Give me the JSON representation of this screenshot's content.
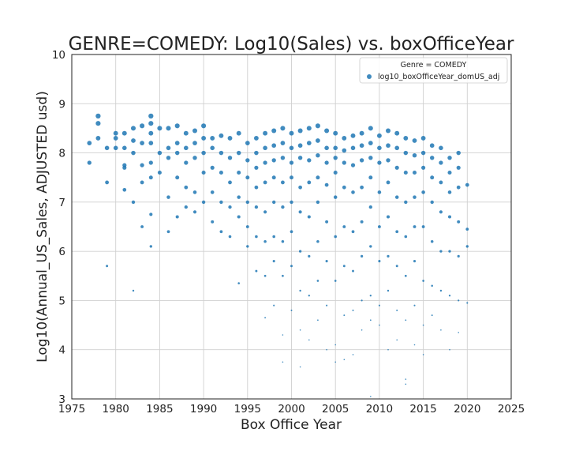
{
  "chart_data": {
    "type": "scatter",
    "title": "GENRE=COMEDY: Log10(Sales) vs. boxOfficeYear",
    "xlabel": "Box Office Year",
    "ylabel": "Log10(Annual_US_Sales, ADJUSTED usd)",
    "xlim": [
      1975,
      2025
    ],
    "ylim": [
      3,
      10
    ],
    "xticks": [
      1975,
      1980,
      1985,
      1990,
      1995,
      2000,
      2005,
      2010,
      2015,
      2020,
      2025
    ],
    "yticks": [
      3,
      4,
      5,
      6,
      7,
      8,
      9,
      10
    ],
    "grid": true,
    "legend": {
      "title": "Genre = COMEDY",
      "placement": "top-right",
      "entries": [
        "log10_boxOfficeYear_domUS_adj"
      ]
    },
    "marker_color": "#1f77b4",
    "series": [
      {
        "name": "log10_boxOfficeYear_domUS_adj",
        "points": [
          [
            1977,
            8.2
          ],
          [
            1977,
            7.8
          ],
          [
            1978,
            8.75
          ],
          [
            1978,
            8.6
          ],
          [
            1978,
            8.3
          ],
          [
            1979,
            8.1
          ],
          [
            1979,
            7.4
          ],
          [
            1979,
            5.7
          ],
          [
            1980,
            8.4
          ],
          [
            1980,
            8.3
          ],
          [
            1980,
            8.1
          ],
          [
            1981,
            8.4
          ],
          [
            1981,
            8.1
          ],
          [
            1981,
            7.75
          ],
          [
            1981,
            7.7
          ],
          [
            1981,
            7.25
          ],
          [
            1982,
            8.5
          ],
          [
            1982,
            8.25
          ],
          [
            1982,
            8.0
          ],
          [
            1982,
            7.0
          ],
          [
            1982,
            5.2
          ],
          [
            1983,
            8.55
          ],
          [
            1983,
            8.2
          ],
          [
            1983,
            7.75
          ],
          [
            1983,
            7.4
          ],
          [
            1983,
            6.5
          ],
          [
            1984,
            8.75
          ],
          [
            1984,
            8.6
          ],
          [
            1984,
            8.4
          ],
          [
            1984,
            8.2
          ],
          [
            1984,
            7.8
          ],
          [
            1984,
            7.5
          ],
          [
            1984,
            6.75
          ],
          [
            1984,
            6.1
          ],
          [
            1985,
            8.5
          ],
          [
            1985,
            8.0
          ],
          [
            1985,
            7.6
          ],
          [
            1986,
            8.5
          ],
          [
            1986,
            8.1
          ],
          [
            1986,
            7.9
          ],
          [
            1986,
            7.1
          ],
          [
            1986,
            6.4
          ],
          [
            1987,
            8.55
          ],
          [
            1987,
            8.2
          ],
          [
            1987,
            8.0
          ],
          [
            1987,
            7.5
          ],
          [
            1987,
            6.7
          ],
          [
            1988,
            8.4
          ],
          [
            1988,
            8.1
          ],
          [
            1988,
            7.8
          ],
          [
            1988,
            7.3
          ],
          [
            1988,
            6.9
          ],
          [
            1989,
            8.45
          ],
          [
            1989,
            8.2
          ],
          [
            1989,
            7.9
          ],
          [
            1989,
            7.2
          ],
          [
            1989,
            6.8
          ],
          [
            1990,
            8.55
          ],
          [
            1990,
            8.3
          ],
          [
            1990,
            8.0
          ],
          [
            1990,
            7.6
          ],
          [
            1990,
            7.0
          ],
          [
            1991,
            8.3
          ],
          [
            1991,
            8.1
          ],
          [
            1991,
            7.7
          ],
          [
            1991,
            7.2
          ],
          [
            1991,
            6.6
          ],
          [
            1992,
            8.35
          ],
          [
            1992,
            8.0
          ],
          [
            1992,
            7.6
          ],
          [
            1992,
            7.0
          ],
          [
            1992,
            6.4
          ],
          [
            1993,
            8.3
          ],
          [
            1993,
            7.9
          ],
          [
            1993,
            7.4
          ],
          [
            1993,
            6.9
          ],
          [
            1993,
            6.3
          ],
          [
            1994,
            8.4
          ],
          [
            1994,
            8.0
          ],
          [
            1994,
            7.6
          ],
          [
            1994,
            7.1
          ],
          [
            1994,
            6.7
          ],
          [
            1994,
            5.35
          ],
          [
            1995,
            8.2
          ],
          [
            1995,
            7.85
          ],
          [
            1995,
            7.5
          ],
          [
            1995,
            7.0
          ],
          [
            1995,
            6.5
          ],
          [
            1995,
            6.1
          ],
          [
            1996,
            8.3
          ],
          [
            1996,
            8.0
          ],
          [
            1996,
            7.7
          ],
          [
            1996,
            7.3
          ],
          [
            1996,
            6.9
          ],
          [
            1996,
            6.3
          ],
          [
            1996,
            5.6
          ],
          [
            1997,
            8.4
          ],
          [
            1997,
            8.1
          ],
          [
            1997,
            7.8
          ],
          [
            1997,
            7.4
          ],
          [
            1997,
            6.8
          ],
          [
            1997,
            6.2
          ],
          [
            1997,
            5.5
          ],
          [
            1997,
            4.65
          ],
          [
            1998,
            8.45
          ],
          [
            1998,
            8.15
          ],
          [
            1998,
            7.85
          ],
          [
            1998,
            7.5
          ],
          [
            1998,
            7.0
          ],
          [
            1998,
            6.3
          ],
          [
            1998,
            5.8
          ],
          [
            1998,
            4.9
          ],
          [
            1999,
            8.5
          ],
          [
            1999,
            8.2
          ],
          [
            1999,
            7.9
          ],
          [
            1999,
            7.4
          ],
          [
            1999,
            6.9
          ],
          [
            1999,
            6.2
          ],
          [
            1999,
            5.5
          ],
          [
            1999,
            4.3
          ],
          [
            1999,
            3.75
          ],
          [
            2000,
            8.4
          ],
          [
            2000,
            8.1
          ],
          [
            2000,
            7.8
          ],
          [
            2000,
            7.5
          ],
          [
            2000,
            7.0
          ],
          [
            2000,
            6.4
          ],
          [
            2000,
            5.7
          ],
          [
            2000,
            4.8
          ],
          [
            2001,
            8.45
          ],
          [
            2001,
            8.15
          ],
          [
            2001,
            7.9
          ],
          [
            2001,
            7.3
          ],
          [
            2001,
            6.8
          ],
          [
            2001,
            6.0
          ],
          [
            2001,
            5.2
          ],
          [
            2001,
            4.4
          ],
          [
            2001,
            3.65
          ],
          [
            2002,
            8.5
          ],
          [
            2002,
            8.2
          ],
          [
            2002,
            7.85
          ],
          [
            2002,
            7.4
          ],
          [
            2002,
            6.7
          ],
          [
            2002,
            5.9
          ],
          [
            2002,
            5.1
          ],
          [
            2002,
            4.2
          ],
          [
            2003,
            8.55
          ],
          [
            2003,
            8.25
          ],
          [
            2003,
            7.95
          ],
          [
            2003,
            7.5
          ],
          [
            2003,
            7.0
          ],
          [
            2003,
            6.2
          ],
          [
            2003,
            5.4
          ],
          [
            2003,
            4.6
          ],
          [
            2004,
            8.45
          ],
          [
            2004,
            8.1
          ],
          [
            2004,
            7.8
          ],
          [
            2004,
            7.35
          ],
          [
            2004,
            6.6
          ],
          [
            2004,
            5.8
          ],
          [
            2004,
            4.9
          ],
          [
            2004,
            4.0
          ],
          [
            2005,
            8.4
          ],
          [
            2005,
            8.1
          ],
          [
            2005,
            7.9
          ],
          [
            2005,
            7.6
          ],
          [
            2005,
            7.1
          ],
          [
            2005,
            6.3
          ],
          [
            2005,
            5.4
          ],
          [
            2005,
            4.1
          ],
          [
            2005,
            3.75
          ],
          [
            2006,
            8.3
          ],
          [
            2006,
            8.05
          ],
          [
            2006,
            7.8
          ],
          [
            2006,
            7.3
          ],
          [
            2006,
            6.5
          ],
          [
            2006,
            5.7
          ],
          [
            2006,
            4.7
          ],
          [
            2006,
            3.8
          ],
          [
            2007,
            8.35
          ],
          [
            2007,
            8.1
          ],
          [
            2007,
            7.75
          ],
          [
            2007,
            7.2
          ],
          [
            2007,
            6.4
          ],
          [
            2007,
            5.6
          ],
          [
            2007,
            4.8
          ],
          [
            2007,
            3.9
          ],
          [
            2008,
            8.4
          ],
          [
            2008,
            8.15
          ],
          [
            2008,
            7.85
          ],
          [
            2008,
            7.3
          ],
          [
            2008,
            6.6
          ],
          [
            2008,
            5.9
          ],
          [
            2008,
            5.0
          ],
          [
            2008,
            4.4
          ],
          [
            2009,
            8.5
          ],
          [
            2009,
            8.2
          ],
          [
            2009,
            7.9
          ],
          [
            2009,
            7.5
          ],
          [
            2009,
            6.9
          ],
          [
            2009,
            6.1
          ],
          [
            2009,
            5.1
          ],
          [
            2009,
            4.6
          ],
          [
            2009,
            3.05
          ],
          [
            2010,
            8.35
          ],
          [
            2010,
            8.1
          ],
          [
            2010,
            7.8
          ],
          [
            2010,
            7.2
          ],
          [
            2010,
            6.5
          ],
          [
            2010,
            5.8
          ],
          [
            2010,
            4.9
          ],
          [
            2010,
            4.5
          ],
          [
            2011,
            8.45
          ],
          [
            2011,
            8.15
          ],
          [
            2011,
            7.85
          ],
          [
            2011,
            7.4
          ],
          [
            2011,
            6.7
          ],
          [
            2011,
            5.9
          ],
          [
            2011,
            5.2
          ],
          [
            2011,
            4.0
          ],
          [
            2012,
            8.4
          ],
          [
            2012,
            8.1
          ],
          [
            2012,
            7.7
          ],
          [
            2012,
            7.1
          ],
          [
            2012,
            6.4
          ],
          [
            2012,
            5.7
          ],
          [
            2012,
            4.8
          ],
          [
            2012,
            4.2
          ],
          [
            2013,
            8.3
          ],
          [
            2013,
            8.0
          ],
          [
            2013,
            7.6
          ],
          [
            2013,
            7.0
          ],
          [
            2013,
            6.3
          ],
          [
            2013,
            5.5
          ],
          [
            2013,
            4.6
          ],
          [
            2013,
            3.4
          ],
          [
            2013,
            3.3
          ],
          [
            2014,
            8.25
          ],
          [
            2014,
            7.95
          ],
          [
            2014,
            7.6
          ],
          [
            2014,
            7.1
          ],
          [
            2014,
            6.5
          ],
          [
            2014,
            5.8
          ],
          [
            2014,
            4.9
          ],
          [
            2014,
            4.1
          ],
          [
            2015,
            8.3
          ],
          [
            2015,
            8.0
          ],
          [
            2015,
            7.7
          ],
          [
            2015,
            7.2
          ],
          [
            2015,
            6.5
          ],
          [
            2015,
            5.4
          ],
          [
            2015,
            4.5
          ],
          [
            2015,
            3.9
          ],
          [
            2016,
            8.15
          ],
          [
            2016,
            7.9
          ],
          [
            2016,
            7.5
          ],
          [
            2016,
            7.0
          ],
          [
            2016,
            6.2
          ],
          [
            2016,
            5.3
          ],
          [
            2016,
            4.7
          ],
          [
            2017,
            8.1
          ],
          [
            2017,
            7.8
          ],
          [
            2017,
            7.4
          ],
          [
            2017,
            6.8
          ],
          [
            2017,
            6.0
          ],
          [
            2017,
            5.2
          ],
          [
            2017,
            4.4
          ],
          [
            2018,
            7.9
          ],
          [
            2018,
            7.6
          ],
          [
            2018,
            7.2
          ],
          [
            2018,
            6.7
          ],
          [
            2018,
            6.0
          ],
          [
            2018,
            5.1
          ],
          [
            2018,
            4.0
          ],
          [
            2019,
            8.0
          ],
          [
            2019,
            7.7
          ],
          [
            2019,
            7.3
          ],
          [
            2019,
            6.6
          ],
          [
            2019,
            5.9
          ],
          [
            2019,
            5.0
          ],
          [
            2019,
            4.35
          ],
          [
            2020,
            7.35
          ],
          [
            2020,
            6.45
          ],
          [
            2020,
            6.1
          ],
          [
            2020,
            4.95
          ]
        ]
      }
    ]
  }
}
